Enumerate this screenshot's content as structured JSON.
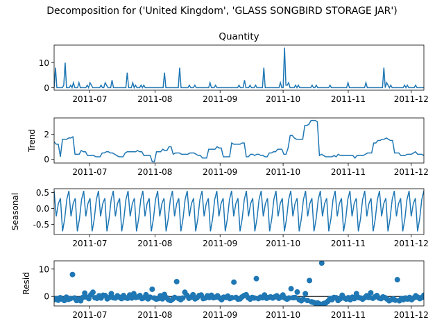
{
  "figure": {
    "suptitle": "Decomposition for ('United Kingdom', 'GLASS  SONGBIRD STORAGE JAR')"
  },
  "chart_data": [
    {
      "type": "line",
      "title": "Quantity",
      "ylabel": "",
      "ylim": [
        -1,
        17
      ],
      "yticks": [
        0,
        10
      ],
      "xticks": [
        "2011-07",
        "2011-08",
        "2011-09",
        "2011-10",
        "2011-11",
        "2011-12"
      ],
      "x_start": "2011-06-14",
      "x_end": "2011-12-07",
      "values": [
        0,
        8,
        0,
        0,
        0,
        0,
        0,
        1,
        10,
        0,
        0,
        0,
        1,
        0,
        2,
        0,
        0,
        0,
        2,
        0,
        0,
        0,
        0,
        0,
        1,
        0,
        2,
        1,
        0,
        0,
        0,
        0,
        0,
        0,
        1,
        0,
        0,
        2,
        1,
        0,
        0,
        0,
        3,
        0,
        0,
        0,
        0,
        0,
        0,
        0,
        0,
        0,
        0,
        6,
        0,
        0,
        0,
        2,
        0,
        1,
        0,
        0,
        0,
        1,
        0,
        1,
        0,
        0,
        0,
        0,
        0,
        0,
        0,
        0,
        0,
        0,
        0,
        0,
        0,
        0,
        6,
        0,
        0,
        0,
        0,
        0,
        0,
        0,
        0,
        0,
        0,
        8,
        0,
        0,
        0,
        0,
        0,
        0,
        1,
        0,
        0,
        0,
        1,
        0,
        0,
        0,
        0,
        0,
        0,
        0,
        0,
        0,
        0,
        2,
        0,
        0,
        0,
        1,
        0,
        0,
        0,
        0,
        0,
        0,
        0,
        0,
        0,
        0,
        0,
        0,
        0,
        0,
        0,
        0,
        1,
        0,
        0,
        0,
        3,
        0,
        0,
        0,
        1,
        0,
        0,
        0,
        1,
        0,
        0,
        0,
        0,
        0,
        8,
        0,
        0,
        0,
        0,
        0,
        0,
        0,
        0,
        0,
        0,
        0,
        2,
        0,
        0,
        16,
        1,
        1,
        2,
        0,
        0,
        0,
        0,
        1,
        0,
        1,
        0,
        0,
        0,
        0,
        0,
        0,
        0,
        0,
        0,
        1,
        0,
        0,
        1,
        0,
        0,
        0,
        0,
        0,
        0,
        0,
        0,
        0,
        1,
        0,
        0,
        0,
        0,
        0,
        0,
        0,
        0,
        0,
        0,
        0,
        0,
        2,
        0,
        0,
        0,
        0,
        0,
        0,
        0,
        0,
        0,
        0,
        0,
        0,
        2,
        0,
        0,
        0,
        0,
        0,
        0,
        0,
        0,
        0,
        0,
        0,
        0,
        8,
        0,
        2,
        1,
        0,
        1,
        0,
        0,
        0,
        0,
        0,
        0,
        0,
        0,
        0,
        1,
        0,
        1,
        0,
        0,
        0,
        0,
        0,
        1,
        0,
        0,
        0,
        0,
        0,
        0
      ]
    },
    {
      "type": "line",
      "title": "",
      "ylabel": "Trend",
      "ylim": [
        -0.3,
        3.3
      ],
      "yticks": [
        0,
        2
      ],
      "xticks": [
        "2011-07",
        "2011-08",
        "2011-09",
        "2011-10",
        "2011-11",
        "2011-12"
      ],
      "x_start": "2011-06-14",
      "x_end": "2011-12-07",
      "values": [
        1.4,
        1.2,
        1.2,
        0.2,
        1.6,
        1.6,
        1.6,
        1.7,
        1.7,
        1.8,
        0.4,
        0.4,
        0.4,
        0.7,
        0.6,
        0.6,
        0.3,
        0.3,
        0.3,
        0.3,
        0.2,
        0.2,
        0.2,
        0.5,
        0.5,
        0.6,
        0.6,
        0.5,
        0.5,
        0.4,
        0.3,
        0.2,
        0.2,
        0.2,
        0.5,
        0.6,
        0.6,
        0.6,
        0.6,
        0.6,
        0.7,
        0.6,
        0.6,
        0.3,
        0.3,
        0.3,
        0.3,
        -0.2,
        -0.2,
        0.6,
        0.6,
        0.6,
        0.8,
        0.7,
        0.7,
        1.0,
        1.0,
        0.4,
        0.5,
        0.5,
        0.5,
        0.4,
        0.4,
        0.4,
        0.4,
        0.5,
        0.5,
        0.5,
        0.4,
        0.3,
        0.3,
        0.1,
        0.1,
        0.1,
        0.8,
        0.8,
        0.8,
        0.8,
        1.0,
        0.9,
        0.9,
        0.2,
        0.2,
        0.2,
        0.2,
        1.3,
        1.2,
        1.2,
        1.2,
        1.2,
        1.3,
        1.3,
        0.2,
        0.2,
        0.4,
        0.4,
        0.3,
        0.4,
        0.4,
        0.3,
        0.3,
        0.2,
        0.2,
        0.5,
        0.5,
        0.6,
        0.6,
        0.8,
        0.8,
        0.8,
        0.4,
        0.4,
        0.9,
        1.9,
        1.9,
        1.7,
        1.6,
        1.6,
        1.6,
        1.6,
        2.7,
        2.7,
        2.8,
        3.1,
        3.1,
        3.1,
        3.0,
        0.3,
        0.4,
        0.3,
        0.2,
        0.2,
        0.2,
        0.2,
        0.3,
        0.2,
        0.4,
        0.3,
        0.3,
        0.3,
        0.3,
        0.3,
        0.3,
        0.3,
        0.1,
        0.3,
        0.3,
        0.3,
        0.3,
        0.4,
        0.5,
        0.5,
        0.5,
        1.3,
        1.3,
        1.5,
        1.5,
        1.6,
        1.6,
        1.7,
        1.6,
        1.5,
        1.5,
        0.5,
        0.5,
        0.5,
        0.3,
        0.3,
        0.3,
        0.4,
        0.4,
        0.4,
        0.5,
        0.6,
        0.4,
        0.4,
        0.4,
        0.3
      ]
    },
    {
      "type": "line",
      "title": "",
      "ylabel": "Seasonal",
      "ylim": [
        -0.82,
        0.62
      ],
      "yticks": [
        0.5,
        0.0,
        -0.5
      ],
      "xticks": [
        "2011-07",
        "2011-08",
        "2011-09",
        "2011-10",
        "2011-11",
        "2011-12"
      ],
      "x_start": "2011-06-14",
      "x_end": "2011-12-07",
      "pattern": [
        0.55,
        -0.25,
        0.15,
        0.32,
        -0.72,
        -0.33,
        0.28
      ],
      "points": 176
    },
    {
      "type": "scatter",
      "title": "",
      "ylabel": "Resid",
      "ylim": [
        -3.5,
        13
      ],
      "yticks": [
        0,
        10
      ],
      "xticks": [
        "2011-07",
        "2011-08",
        "2011-09",
        "2011-10",
        "2011-11",
        "2011-12"
      ],
      "x_start": "2011-06-14",
      "x_end": "2011-12-07",
      "values": [
        -1.2,
        -0.8,
        -1.4,
        -0.5,
        -1.0,
        -1.5,
        -0.3,
        -1.1,
        -0.8,
        8.0,
        -0.6,
        -1.5,
        -1.0,
        -1.6,
        -0.4,
        1.2,
        -0.3,
        -0.8,
        0.6,
        1.5,
        -0.5,
        -0.7,
        0.2,
        -0.6,
        0.4,
        0.3,
        -0.9,
        -0.4,
        1.0,
        -0.5,
        -0.6,
        0.2,
        -0.3,
        -0.8,
        0.3,
        -0.5,
        -0.7,
        0.5,
        -0.6,
        1.0,
        -0.4,
        -0.2,
        0.3,
        -0.8,
        -0.5,
        0.6,
        -0.9,
        -0.3,
        2.6,
        -0.6,
        -1.0,
        -0.8,
        0.2,
        -0.9,
        0.7,
        -0.5,
        -1.2,
        -1.5,
        -1.0,
        -0.4,
        5.4,
        -0.8,
        -1.2,
        -0.6,
        1.5,
        0.4,
        -0.7,
        -0.3,
        0.6,
        -0.9,
        -0.5,
        0.3,
        0.5,
        -0.8,
        -0.6,
        0.2,
        -0.4,
        0.4,
        -0.5,
        -0.3,
        0.2,
        -0.6,
        -1.2,
        -0.3,
        -0.4,
        0.1,
        -0.8,
        -0.5,
        5.2,
        -0.4,
        -1.0,
        -0.9,
        -0.2,
        0.3,
        0.6,
        -0.5,
        -1.0,
        -0.4,
        -0.6,
        6.5,
        -0.8,
        -0.3,
        -0.5,
        0.5,
        -0.7,
        -0.4,
        -0.2,
        -0.6,
        -0.2,
        0.2,
        -0.7,
        -0.3,
        0.5,
        -0.6,
        -1.0,
        -0.6,
        2.8,
        -0.5,
        -0.4,
        1.6,
        -1.2,
        -1.6,
        -1.0,
        1.0,
        -1.5,
        5.8,
        -2.0,
        -2.2,
        -2.6,
        -2.4,
        -2.8,
        12.2,
        -2.6,
        -2.4,
        -1.8,
        -0.8,
        -1.2,
        -0.4,
        -0.5,
        -1.5,
        -0.9,
        0.4,
        -0.6,
        -1.0,
        -0.5,
        -1.2,
        -0.3,
        -0.8,
        1.0,
        -0.4,
        -0.6,
        -1.0,
        -0.5,
        0.2,
        -0.4,
        1.3,
        -0.7,
        -0.2,
        0.3,
        -0.6,
        -0.8,
        -0.2,
        -0.5,
        -1.0,
        -1.6,
        -1.2,
        -0.9,
        -1.4,
        6.1,
        -1.6,
        -0.8,
        -1.2,
        -0.6,
        -1.0,
        -0.4,
        -1.2,
        -0.6,
        0.2,
        -0.3,
        -0.8,
        -0.4,
        0.4
      ]
    }
  ],
  "colors": {
    "series": "#1f77b4",
    "axis": "#000000",
    "zero_line": "#000000"
  }
}
